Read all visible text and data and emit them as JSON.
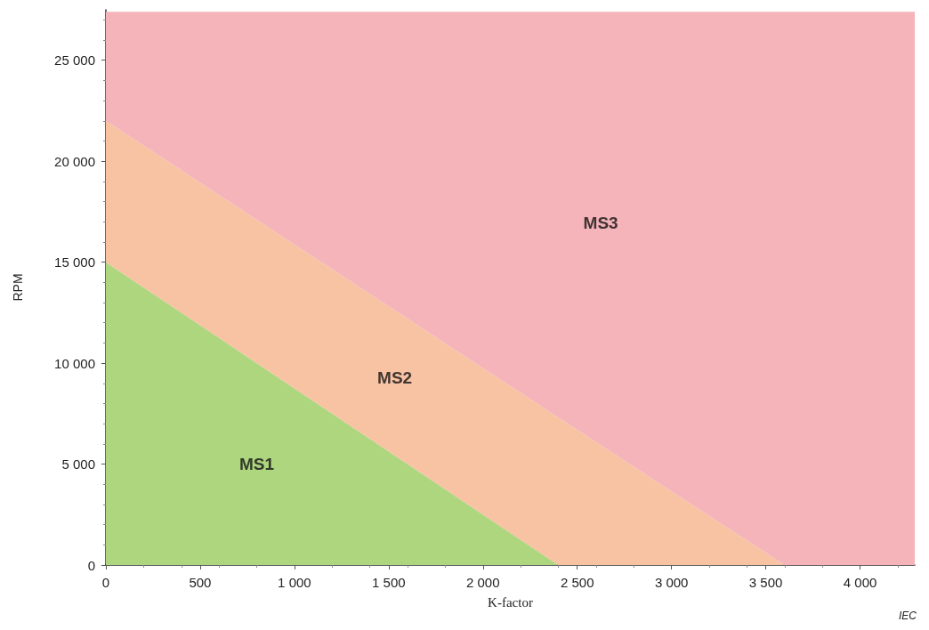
{
  "chart_data": {
    "type": "area",
    "stacked": true,
    "xlabel": "K-factor",
    "ylabel": "RPM",
    "xlim": [
      0,
      4290
    ],
    "ylim": [
      0,
      27500
    ],
    "xticks": [
      0,
      500,
      {
        "value": 1000,
        "label": "1 000"
      },
      {
        "value": 1500,
        "label": "1 500"
      },
      {
        "value": 2000,
        "label": "2 000"
      },
      {
        "value": 2500,
        "label": "2 500"
      },
      {
        "value": 3000,
        "label": "3 000"
      },
      {
        "value": 3500,
        "label": "3 500"
      },
      {
        "value": 4000,
        "label": "4 000"
      }
    ],
    "yticks": [
      0,
      {
        "value": 5000,
        "label": "5 000"
      },
      {
        "value": 10000,
        "label": "10 000"
      },
      {
        "value": 15000,
        "label": "15 000"
      },
      {
        "value": 20000,
        "label": "20 000"
      },
      {
        "value": 25000,
        "label": "25 000"
      }
    ],
    "x": [
      0,
      2400,
      3600,
      4290
    ],
    "series": [
      {
        "name": "MS1",
        "color": "#aed67f",
        "values": [
          15000,
          0,
          0,
          0
        ]
      },
      {
        "name": "MS2",
        "color": "#f8c3a3",
        "values": [
          7000,
          7300,
          0,
          0
        ]
      },
      {
        "name": "MS3",
        "color": "#f4b4ba",
        "values": [
          5400,
          20100,
          27400,
          27400
        ]
      }
    ],
    "annotations": [
      "IEC"
    ],
    "grid": false
  }
}
